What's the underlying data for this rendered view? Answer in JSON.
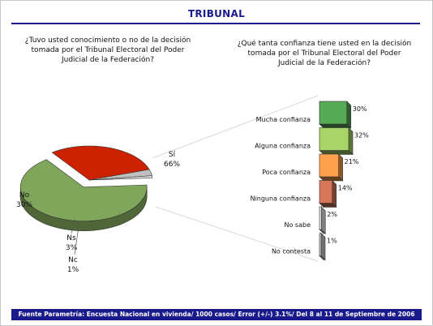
{
  "title": "TRIBUNAL",
  "footer": "Fuente Parametría: Encuesta Nacional en vivienda/ 1000 casos/ Error (+/-) 3.1%/ Del 8 al 11 de Septiembre de 2006",
  "colors": {
    "title": "#1a1a8c",
    "footer_bg": "#1a1a8c"
  },
  "chart_data": [
    {
      "type": "pie",
      "question": "¿Tuvo usted conocimiento o no de la decisión tomada por el Tribunal Electoral del Poder Judicial de la Federación?",
      "slices": [
        {
          "label": "Sí",
          "value": 66,
          "value_label": "66%",
          "color": "#7fa65a",
          "exploded": true
        },
        {
          "label": "No",
          "value": 30,
          "value_label": "30%",
          "color": "#cc2200",
          "exploded": false
        },
        {
          "label": "Ns",
          "value": 3,
          "value_label": "3%",
          "color": "#c0c0c0",
          "exploded": false
        },
        {
          "label": "Nc",
          "value": 1,
          "value_label": "1%",
          "color": "#e8e8e8",
          "exploded": false
        }
      ]
    },
    {
      "type": "bar",
      "orientation": "horizontal",
      "question": "¿Qué tanta confianza tiene usted en la decisión tomada por el Tribunal Electoral del Poder Judicial de la Federación?",
      "categories": [
        "Mucha confianza",
        "Alguna confianza",
        "Poca confianza",
        "Ninguna confianza",
        "No sabe",
        "No contesta"
      ],
      "values": [
        30,
        32,
        21,
        14,
        2,
        1
      ],
      "value_labels": [
        "30%",
        "32%",
        "21%",
        "14%",
        "2%",
        "1%"
      ],
      "colors": [
        "#55aa55",
        "#a8d468",
        "#ffa04a",
        "#d8765a",
        "#e6e6e6",
        "#d0d0d0"
      ]
    }
  ]
}
